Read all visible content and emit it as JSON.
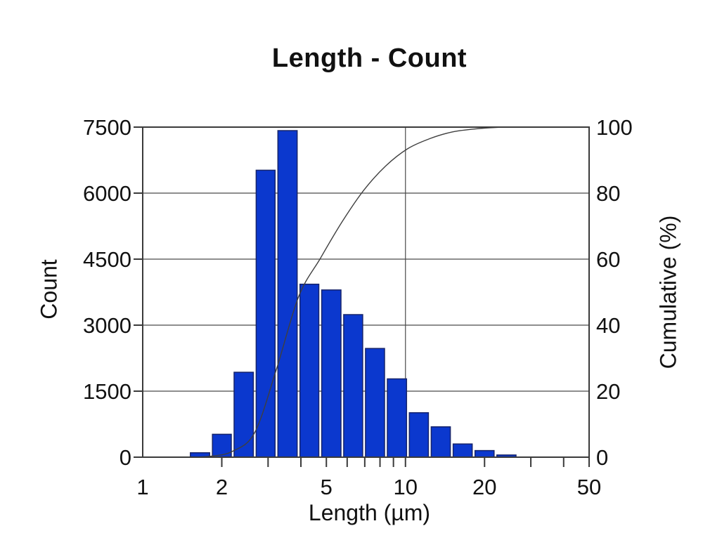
{
  "chart_data": {
    "type": "bar",
    "subtype": "log-histogram-with-cumulative-curve",
    "title": "Length - Count",
    "x_axis": {
      "label": "Length (µm)",
      "scale": "log",
      "min": 1,
      "max": 50,
      "tick_labels": [
        1,
        2,
        5,
        10,
        20,
        50
      ],
      "tick_marks": [
        2,
        3,
        4,
        5,
        6,
        7,
        8,
        9,
        10,
        20,
        30,
        40,
        50
      ],
      "gridlines": [
        10
      ]
    },
    "y_left": {
      "label": "Count",
      "min": 0,
      "max": 7500,
      "ticks": [
        0,
        1500,
        3000,
        4500,
        6000,
        7500
      ]
    },
    "y_right": {
      "label": "Cumulative (%)",
      "min": 0,
      "max": 100,
      "ticks": [
        0,
        20,
        40,
        60,
        80,
        100
      ]
    },
    "bins": {
      "edges_um": [
        1.5,
        1.82,
        2.2,
        2.67,
        3.23,
        3.92,
        4.74,
        5.75,
        6.96,
        8.43,
        10.22,
        12.38,
        15.0,
        18.17,
        22.01,
        26.67
      ],
      "counts": [
        100,
        520,
        1930,
        6520,
        7420,
        3930,
        3800,
        3240,
        2470,
        1780,
        1010,
        690,
        300,
        150,
        50
      ]
    },
    "cumulative_percent_at_bin_right_edge": [
      0.3,
      1.8,
      7.5,
      26.7,
      48.6,
      60.2,
      71.4,
      81.0,
      88.3,
      93.5,
      96.5,
      98.5,
      99.4,
      99.9,
      100
    ],
    "legend": "none",
    "grid": "on",
    "colors": {
      "bar_fill": "#0b38ce",
      "bar_stroke": "#16246b",
      "curve": "#3f3f3f",
      "grid": "#4a4a4a",
      "axis": "#3a3a3a",
      "text": "#111111",
      "background": "#ffffff"
    }
  }
}
